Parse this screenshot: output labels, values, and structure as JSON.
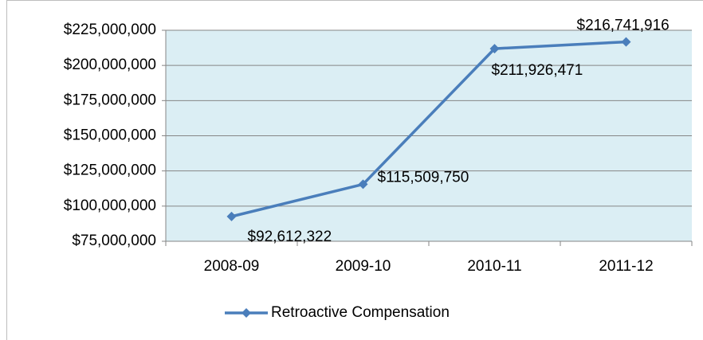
{
  "chart_data": {
    "type": "line",
    "categories": [
      "2008-09",
      "2009-10",
      "2010-11",
      "2011-12"
    ],
    "series": [
      {
        "name": "Retroactive Compensation",
        "color": "#4a7ebb",
        "values": [
          92612322,
          115509750,
          211926471,
          216741916
        ],
        "value_labels": [
          "$92,612,322",
          "$115,509,750",
          "$211,926,471",
          "$216,741,916"
        ]
      }
    ],
    "ylim": [
      75000000,
      225000000
    ],
    "yticks": [
      {
        "value": 75000000,
        "label": "$75,000,000"
      },
      {
        "value": 100000000,
        "label": "$100,000,000"
      },
      {
        "value": 125000000,
        "label": "$125,000,000"
      },
      {
        "value": 150000000,
        "label": "$150,000,000"
      },
      {
        "value": 175000000,
        "label": "$175,000,000"
      },
      {
        "value": 200000000,
        "label": "$200,000,000"
      },
      {
        "value": 225000000,
        "label": "$225,000,000"
      }
    ],
    "grid": true,
    "legend": "bottom"
  }
}
